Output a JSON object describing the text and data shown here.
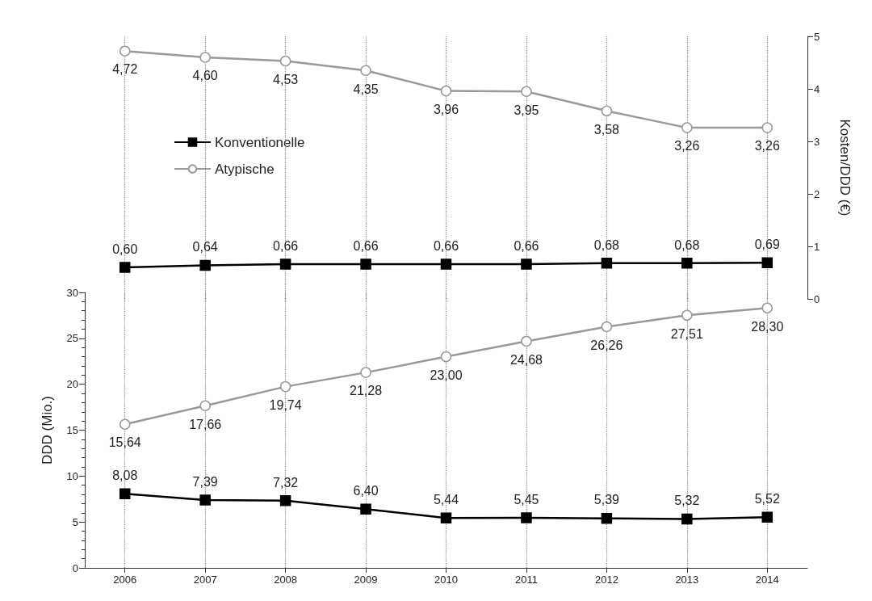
{
  "chart_data": [
    {
      "type": "line",
      "categories": [
        "2006",
        "2007",
        "2008",
        "2009",
        "2010",
        "2011",
        "2012",
        "2013",
        "2014"
      ],
      "ylabel": "Kosten/DDD (€)",
      "ylim": [
        0,
        5
      ],
      "yticks": [
        0,
        1,
        2,
        3,
        4,
        5
      ],
      "tick_labels": "y",
      "grid": "x",
      "legend": "left",
      "series": [
        {
          "name": "Konventionelle",
          "color": "#000000",
          "marker": "square",
          "values": [
            0.6,
            0.64,
            0.66,
            0.66,
            0.66,
            0.66,
            0.68,
            0.68,
            0.69
          ],
          "value_labels": [
            "0,60",
            "0,64",
            "0,66",
            "0,66",
            "0,66",
            "0,66",
            "0,68",
            "0,68",
            "0,69"
          ]
        },
        {
          "name": "Atypische",
          "color": "#999999",
          "marker": "circle",
          "values": [
            4.72,
            4.6,
            4.53,
            4.35,
            3.96,
            3.95,
            3.58,
            3.26,
            3.26
          ],
          "value_labels": [
            "4,72",
            "4,60",
            "4,53",
            "4,35",
            "3,96",
            "3,95",
            "3,58",
            "3,26",
            "3,26"
          ]
        }
      ]
    },
    {
      "type": "line",
      "categories": [
        "2006",
        "2007",
        "2008",
        "2009",
        "2010",
        "2011",
        "2012",
        "2013",
        "2014"
      ],
      "ylabel": "DDD (Mio.)",
      "ylim": [
        0,
        30
      ],
      "yticks": [
        0,
        5,
        10,
        15,
        20,
        25,
        30
      ],
      "grid": "x",
      "series": [
        {
          "color": "#000000",
          "marker": "square",
          "values": [
            8.08,
            7.39,
            7.32,
            6.4,
            5.44,
            5.45,
            5.39,
            5.32,
            5.52
          ],
          "value_labels": [
            "8,08",
            "7,39",
            "7,32",
            "6,40",
            "5,44",
            "5,45",
            "5,39",
            "5,32",
            "5,52"
          ]
        },
        {
          "color": "#999999",
          "marker": "circle",
          "values": [
            15.64,
            17.66,
            19.74,
            21.28,
            23.0,
            24.68,
            26.26,
            27.51,
            28.3
          ],
          "value_labels": [
            "15,64",
            "17,66",
            "19,74",
            "21,28",
            "23,00",
            "24,68",
            "26,26",
            "27,51",
            "28,30"
          ]
        }
      ]
    }
  ]
}
